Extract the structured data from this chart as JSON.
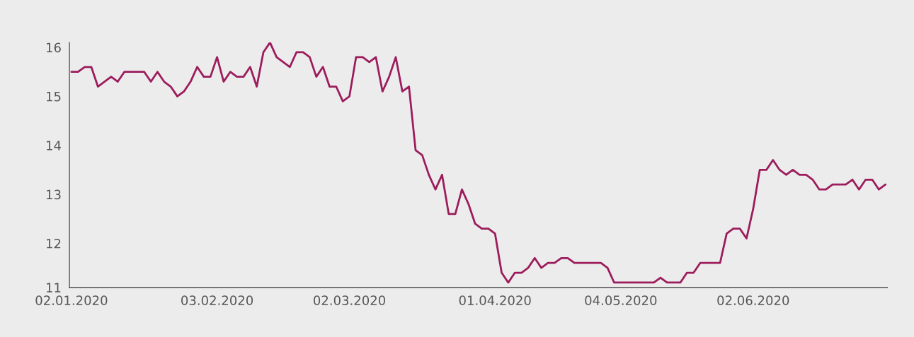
{
  "chart_data": {
    "type": "line",
    "categories": [
      "02.01.2020",
      null,
      null,
      null,
      null,
      null,
      null,
      null,
      null,
      null,
      null,
      null,
      null,
      null,
      null,
      null,
      null,
      null,
      null,
      null,
      null,
      null,
      "03.02.2020",
      null,
      null,
      null,
      null,
      null,
      null,
      null,
      null,
      null,
      null,
      null,
      null,
      null,
      null,
      null,
      null,
      null,
      null,
      null,
      "02.03.2020",
      null,
      null,
      null,
      null,
      null,
      null,
      null,
      null,
      null,
      null,
      null,
      null,
      null,
      null,
      null,
      null,
      null,
      null,
      null,
      null,
      null,
      "01.04.2020",
      null,
      null,
      null,
      null,
      null,
      null,
      null,
      null,
      null,
      null,
      null,
      null,
      null,
      null,
      null,
      null,
      null,
      null,
      "04.05.2020",
      null,
      null,
      null,
      null,
      null,
      null,
      null,
      null,
      null,
      null,
      null,
      null,
      null,
      null,
      null,
      null,
      null,
      null,
      null,
      "02.06.2020",
      null,
      null,
      null,
      null,
      null,
      null,
      null,
      null,
      null,
      null,
      null,
      null,
      null,
      null,
      null,
      null,
      null,
      null,
      null,
      null
    ],
    "series": [
      {
        "color": "#9c1c5c",
        "values": [
          15.5,
          15.5,
          15.6,
          15.6,
          15.2,
          15.3,
          15.4,
          15.3,
          15.5,
          15.5,
          15.5,
          15.5,
          15.3,
          15.5,
          15.3,
          15.2,
          15.0,
          15.1,
          15.3,
          15.6,
          15.4,
          15.4,
          15.8,
          15.3,
          15.5,
          15.4,
          15.4,
          15.6,
          15.2,
          15.9,
          16.1,
          15.8,
          15.7,
          15.6,
          15.9,
          15.9,
          15.8,
          15.4,
          15.6,
          15.2,
          15.2,
          14.9,
          15.0,
          15.8,
          15.8,
          15.7,
          15.8,
          15.1,
          15.4,
          15.8,
          15.1,
          15.2,
          13.9,
          13.8,
          13.4,
          13.1,
          13.4,
          12.6,
          12.6,
          13.1,
          12.8,
          12.4,
          12.3,
          12.3,
          12.2,
          11.4,
          11.2,
          11.4,
          11.4,
          11.5,
          11.7,
          11.5,
          11.6,
          11.6,
          11.7,
          11.7,
          11.6,
          11.6,
          11.6,
          11.6,
          11.6,
          11.5,
          11.2,
          11.2,
          11.2,
          11.2,
          11.2,
          11.2,
          11.2,
          11.3,
          11.2,
          11.2,
          11.2,
          11.4,
          11.4,
          11.6,
          11.6,
          11.6,
          11.6,
          12.2,
          12.3,
          12.3,
          12.1,
          12.7,
          13.5,
          13.5,
          13.7,
          13.5,
          13.4,
          13.5,
          13.4,
          13.4,
          13.3,
          13.1,
          13.1,
          13.2,
          13.2,
          13.2,
          13.3,
          13.1,
          13.3,
          13.3,
          13.1,
          13.2
        ]
      }
    ],
    "ylim": [
      11.1,
      16.1
    ],
    "yticks": [
      {
        "value": 11.1,
        "label": "11"
      },
      12,
      13,
      14,
      15,
      16
    ],
    "grid": false,
    "marker": "none",
    "line_style": "solid"
  }
}
